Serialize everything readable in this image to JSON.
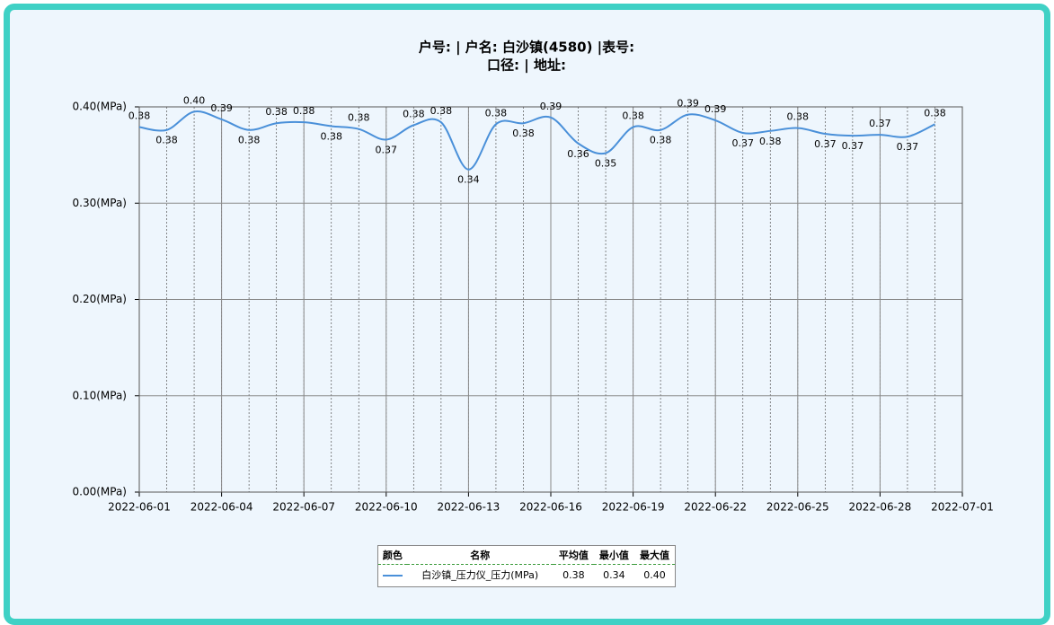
{
  "chart_data": {
    "type": "line",
    "title": "户号: | 户名: 白沙镇(4580) |表号:",
    "subtitle": "口径: | 地址:",
    "x": [
      "2022-06-01",
      "2022-06-02",
      "2022-06-03",
      "2022-06-04",
      "2022-06-05",
      "2022-06-06",
      "2022-06-07",
      "2022-06-08",
      "2022-06-09",
      "2022-06-10",
      "2022-06-11",
      "2022-06-12",
      "2022-06-13",
      "2022-06-14",
      "2022-06-15",
      "2022-06-16",
      "2022-06-17",
      "2022-06-18",
      "2022-06-19",
      "2022-06-20",
      "2022-06-21",
      "2022-06-22",
      "2022-06-23",
      "2022-06-24",
      "2022-06-25",
      "2022-06-26",
      "2022-06-27",
      "2022-06-28",
      "2022-06-29",
      "2022-06-30"
    ],
    "series": [
      {
        "name": "白沙镇_压力仪_压力(MPa)",
        "color": "#4a90d9",
        "values": [
          0.379,
          0.376,
          0.395,
          0.387,
          0.376,
          0.383,
          0.384,
          0.38,
          0.377,
          0.366,
          0.381,
          0.384,
          0.335,
          0.382,
          0.383,
          0.389,
          0.362,
          0.352,
          0.379,
          0.376,
          0.392,
          0.386,
          0.373,
          0.375,
          0.378,
          0.372,
          0.37,
          0.371,
          0.369,
          0.382
        ],
        "value_labels": [
          "0.38",
          "0.38",
          "0.40",
          "0.39",
          "0.38",
          "0.38",
          "0.38",
          "0.38",
          "0.38",
          "0.37",
          "0.38",
          "0.38",
          "0.34",
          "0.38",
          "0.38",
          "0.39",
          "0.36",
          "0.35",
          "0.38",
          "0.38",
          "0.39",
          "0.39",
          "0.37",
          "0.38",
          "0.38",
          "0.37",
          "0.37",
          "0.37",
          "0.37",
          "0.38"
        ]
      }
    ],
    "xlim": [
      "2022-06-01",
      "2022-07-01"
    ],
    "xticks": [
      "2022-06-01",
      "2022-06-04",
      "2022-06-07",
      "2022-06-10",
      "2022-06-13",
      "2022-06-16",
      "2022-06-19",
      "2022-06-22",
      "2022-06-25",
      "2022-06-28",
      "2022-07-01"
    ],
    "ylim": [
      0,
      0.4
    ],
    "yticks": [
      {
        "value": 0,
        "label": "0.00(MPa)"
      },
      {
        "value": 0.1,
        "label": "0.10(MPa)"
      },
      {
        "value": 0.2,
        "label": "0.20(MPa)"
      },
      {
        "value": 0.3,
        "label": "0.30(MPa)"
      },
      {
        "value": 0.4,
        "label": "0.40(MPa)"
      }
    ],
    "grid": true
  },
  "legend_table": {
    "headers": [
      "颜色",
      "名称",
      "平均值",
      "最小值",
      "最大值"
    ],
    "rows": [
      [
        "白沙镇_压力仪_压力(MPa)",
        "0.38",
        "0.34",
        "0.40"
      ]
    ]
  }
}
